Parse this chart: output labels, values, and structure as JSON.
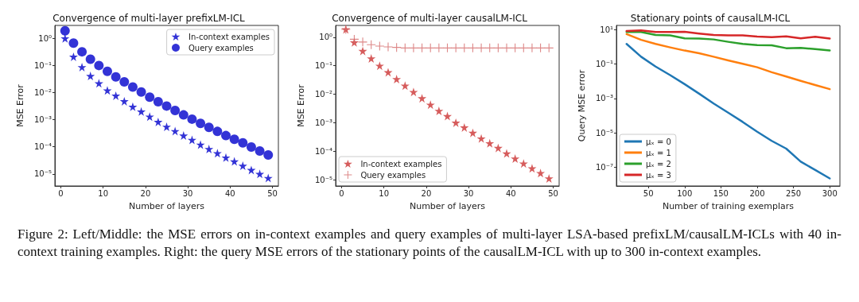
{
  "chart_data": [
    {
      "type": "scatter",
      "title": "Convergence of multi-layer prefixLM-ICL",
      "xlabel": "Number of layers",
      "ylabel": "MSE Error",
      "log": "y",
      "legend": "top right",
      "grid": false,
      "x": [
        1,
        3,
        5,
        7,
        9,
        11,
        13,
        15,
        17,
        19,
        21,
        23,
        25,
        27,
        29,
        31,
        33,
        35,
        37,
        39,
        41,
        43,
        45,
        47,
        49
      ],
      "xlim": [
        -1.4,
        51.4
      ],
      "xticks": [
        0,
        10,
        20,
        30,
        40,
        50
      ],
      "ylim": [
        3.6e-06,
        3
      ],
      "yticks": [
        {
          "value": 1e-05,
          "label": "10⁻⁵"
        },
        {
          "value": 0.0001,
          "label": "10⁻⁴"
        },
        {
          "value": 0.001,
          "label": "10⁻³"
        },
        {
          "value": 0.01,
          "label": "10⁻²"
        },
        {
          "value": 0.1,
          "label": "10⁻¹"
        },
        {
          "value": 1,
          "label": "10⁰"
        }
      ],
      "series": [
        {
          "name": "In-context examples",
          "color": "#0000cc",
          "marker": "star",
          "values": [
            1.0,
            0.21,
            0.087,
            0.041,
            0.022,
            0.012,
            0.0077,
            0.0048,
            0.003,
            0.002,
            0.0013,
            0.00083,
            0.00055,
            0.00038,
            0.00026,
            0.00018,
            0.00012,
            8.3e-05,
            5.8e-05,
            4e-05,
            2.9e-05,
            2e-05,
            1.4e-05,
            1e-05,
            7.1e-06
          ]
        },
        {
          "name": "Query examples",
          "color": "#0000cc",
          "marker": "circle",
          "values": [
            1.9,
            0.67,
            0.32,
            0.17,
            0.1,
            0.061,
            0.038,
            0.025,
            0.016,
            0.0105,
            0.0068,
            0.0046,
            0.0032,
            0.0022,
            0.0015,
            0.00105,
            0.00073,
            0.00052,
            0.00037,
            0.00026,
            0.00019,
            0.00014,
            9.8e-05,
            7e-05,
            5e-05
          ]
        }
      ]
    },
    {
      "type": "scatter",
      "title": "Convergence of multi-layer causalLM-ICL",
      "xlabel": "Number of layers",
      "ylabel": "MSE Error",
      "log": "y",
      "legend": "bottom left",
      "grid": false,
      "x": [
        1,
        3,
        5,
        7,
        9,
        11,
        13,
        15,
        17,
        19,
        21,
        23,
        25,
        27,
        29,
        31,
        33,
        35,
        37,
        39,
        41,
        43,
        45,
        47,
        49
      ],
      "xlim": [
        -1.4,
        51.4
      ],
      "xticks": [
        0,
        10,
        20,
        30,
        40,
        50
      ],
      "ylim": [
        6e-06,
        2.6
      ],
      "yticks": [
        {
          "value": 1e-05,
          "label": "10⁻⁵"
        },
        {
          "value": 0.0001,
          "label": "10⁻⁴"
        },
        {
          "value": 0.001,
          "label": "10⁻³"
        },
        {
          "value": 0.01,
          "label": "10⁻²"
        },
        {
          "value": 0.1,
          "label": "10⁻¹"
        },
        {
          "value": 1,
          "label": "10⁰"
        }
      ],
      "series": [
        {
          "name": "In-context examples",
          "color": "#cc3333",
          "marker": "star",
          "values": [
            1.9,
            0.66,
            0.33,
            0.18,
            0.1,
            0.059,
            0.034,
            0.02,
            0.012,
            0.0072,
            0.0043,
            0.0026,
            0.0017,
            0.001,
            0.00068,
            0.00044,
            0.00028,
            0.00019,
            0.00013,
            8.3e-05,
            5.5e-05,
            3.7e-05,
            2.5e-05,
            1.7e-05,
            1.1e-05
          ]
        },
        {
          "name": "Query examples",
          "color": "#d46a6a",
          "marker": "cross",
          "values": [
            1.9,
            0.85,
            0.68,
            0.55,
            0.49,
            0.46,
            0.44,
            0.42,
            0.42,
            0.42,
            0.42,
            0.42,
            0.42,
            0.42,
            0.42,
            0.42,
            0.42,
            0.42,
            0.42,
            0.42,
            0.42,
            0.42,
            0.42,
            0.42,
            0.42
          ]
        }
      ]
    },
    {
      "type": "line",
      "title": "Stationary points of causalLM-ICL",
      "xlabel": "Number of training exemplars",
      "ylabel": "Query MSE error",
      "log": "y",
      "legend": "bottom left",
      "grid": false,
      "marker": "none",
      "x": [
        20,
        40,
        60,
        80,
        100,
        120,
        140,
        160,
        180,
        200,
        220,
        240,
        260,
        280,
        300
      ],
      "xlim": [
        6,
        314
      ],
      "xticks": [
        50,
        100,
        150,
        200,
        250,
        300
      ],
      "ylim": [
        8e-09,
        18
      ],
      "yticks": [
        {
          "value": 1e-07,
          "label": "10⁻⁷"
        },
        {
          "value": 1e-05,
          "label": "10⁻⁵"
        },
        {
          "value": 0.001,
          "label": "10⁻³"
        },
        {
          "value": 0.1,
          "label": "10⁻¹"
        },
        {
          "value": 10,
          "label": "10¹"
        }
      ],
      "annotations": [
        "Figure 2: Left/Middle: the MSE errors on in-context examples and query examples of multi-layer LSA-based prefixLM/causalLM-ICLs with 40 in-context training examples. Right: the query MSE errors of the stationary points of the causalLM-ICL with up to 300 in-context examples."
      ],
      "series": [
        {
          "name": "μₓ = 0",
          "color": "#1f77b4",
          "values": [
            1.5,
            0.27,
            0.072,
            0.023,
            0.0068,
            0.0019,
            0.00051,
            0.00015,
            4.3e-05,
            1.15e-05,
            3.4e-06,
            1.2e-06,
            2.1e-07,
            6.8e-08,
            2.2e-08
          ]
        },
        {
          "name": "μₓ = 1",
          "color": "#ff7f0e",
          "values": [
            5.6,
            2.6,
            1.5,
            0.95,
            0.62,
            0.43,
            0.27,
            0.165,
            0.105,
            0.066,
            0.034,
            0.019,
            0.0107,
            0.0061,
            0.0035
          ]
        },
        {
          "name": "μₓ = 2",
          "color": "#2ca02c",
          "values": [
            7.4,
            7.4,
            5.0,
            4.7,
            3.2,
            3.1,
            2.75,
            2.0,
            1.5,
            1.3,
            1.24,
            0.85,
            0.88,
            0.76,
            0.62
          ]
        },
        {
          "name": "μₓ = 3",
          "color": "#d62728",
          "values": [
            8.6,
            9.3,
            7.4,
            7.4,
            7.7,
            6.1,
            5.0,
            4.7,
            4.7,
            4.0,
            3.7,
            4.2,
            3.2,
            3.9,
            3.1
          ]
        }
      ]
    }
  ]
}
